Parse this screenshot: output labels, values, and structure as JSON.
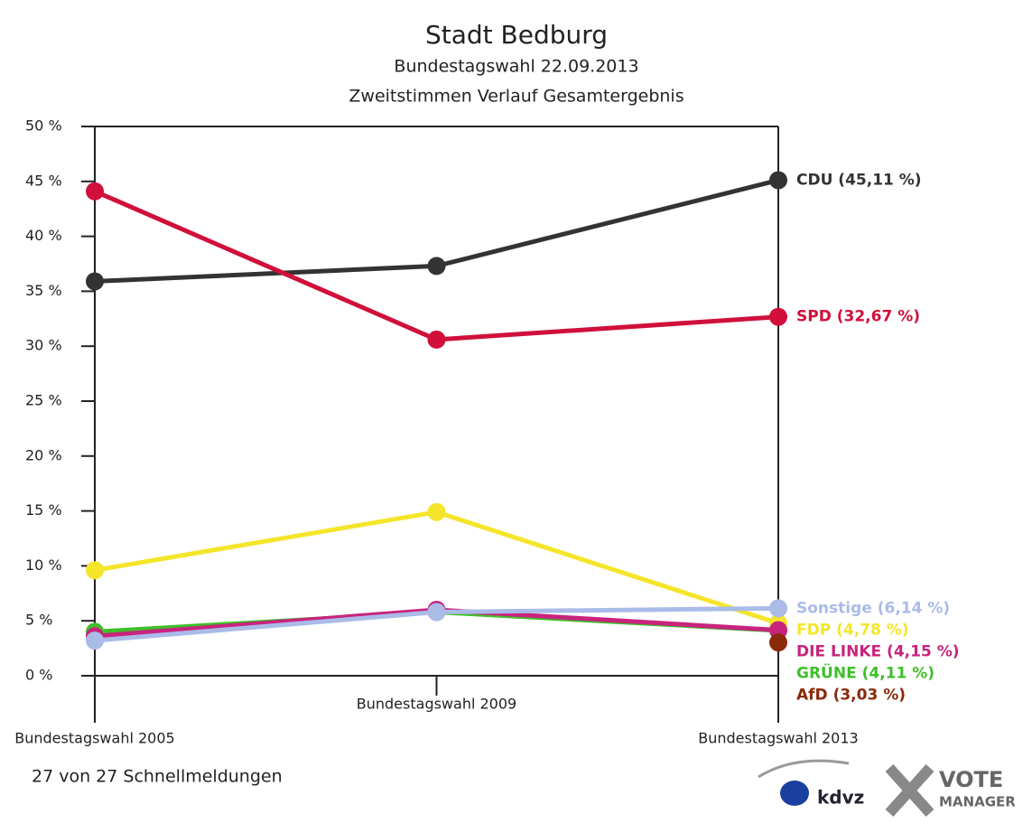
{
  "chart_data": {
    "type": "line",
    "title": "Stadt Bedburg",
    "subtitle": [
      "Bundestagswahl 22.09.2013",
      "Zweitstimmen Verlauf Gesamtergebnis"
    ],
    "categories": [
      "Bundestagswahl 2005",
      "Bundestagswahl 2009",
      "Bundestagswahl 2013"
    ],
    "ylim": [
      0,
      50
    ],
    "yticks": [
      {
        "value": 0,
        "label": "0 %"
      },
      {
        "value": 5,
        "label": "5 %"
      },
      {
        "value": 10,
        "label": "10 %"
      },
      {
        "value": 15,
        "label": "15 %"
      },
      {
        "value": 20,
        "label": "20 %"
      },
      {
        "value": 25,
        "label": "25 %"
      },
      {
        "value": 30,
        "label": "30 %"
      },
      {
        "value": 35,
        "label": "35 %"
      },
      {
        "value": 40,
        "label": "40 %"
      },
      {
        "value": 45,
        "label": "45 %"
      },
      {
        "value": 50,
        "label": "50 %"
      }
    ],
    "series": [
      {
        "color": "#333333",
        "values": [
          35.9,
          37.3,
          45.11
        ],
        "value_labels": [
          null,
          null,
          "CDU (45,11 %)"
        ]
      },
      {
        "color": "#d0103a",
        "values": [
          44.1,
          30.6,
          32.67
        ],
        "value_labels": [
          null,
          null,
          "SPD (32,67 %)"
        ]
      },
      {
        "color": "#f5e52a",
        "values": [
          9.6,
          14.9,
          4.78
        ],
        "value_labels": [
          null,
          null,
          "FDP (4,78 %)"
        ]
      },
      {
        "color": "#3fbf2a",
        "values": [
          4.0,
          5.8,
          4.11
        ],
        "value_labels": [
          null,
          null,
          "GRÜNE (4,11 %)"
        ]
      },
      {
        "color": "#c8247d",
        "values": [
          3.6,
          6.0,
          4.15
        ],
        "value_labels": [
          null,
          null,
          "DIE LINKE (4,15 %)"
        ]
      },
      {
        "color": "#aabbe8",
        "values": [
          3.2,
          5.8,
          6.14
        ],
        "value_labels": [
          null,
          null,
          "Sonstige (6,14 %)"
        ]
      },
      {
        "color": "#8b2a0a",
        "values": [
          null,
          null,
          3.03
        ],
        "value_labels": [
          null,
          null,
          "AfD (3,03 %)"
        ]
      }
    ]
  },
  "footer": "27 von 27 Schnellmeldungen",
  "logos": [
    "kdvz",
    "VOTE",
    "MANAGER"
  ]
}
